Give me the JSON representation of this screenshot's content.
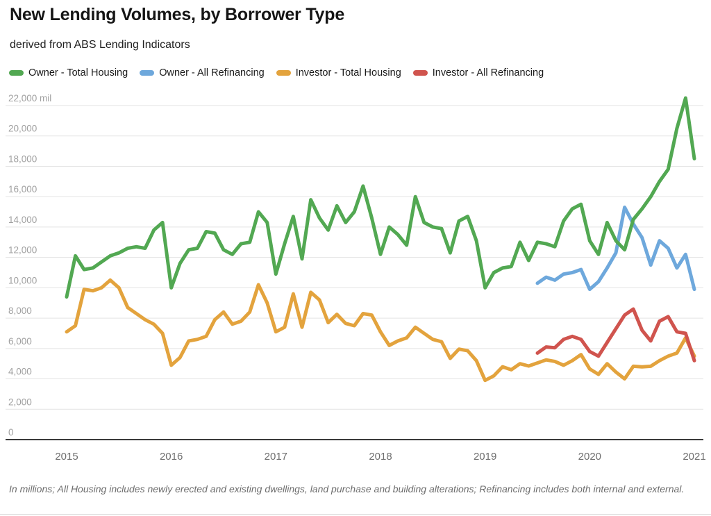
{
  "header": {
    "title": "New Lending Volumes, by Borrower Type",
    "subtitle": "derived from ABS Lending Indicators"
  },
  "footer": {
    "note": "In millions; All Housing includes newly erected and existing dwellings, land purchase and building alterations; Refinancing includes both internal and external."
  },
  "chart_data": {
    "type": "line",
    "title": "New Lending Volumes, by Borrower Type",
    "grid": "horizontal-only",
    "legend_position": "top",
    "x_axis": {
      "unit": "month",
      "start": "2015-01",
      "end": "2021-01",
      "year_labels": [
        {
          "label": "2015",
          "month_index": 0
        },
        {
          "label": "2016",
          "month_index": 12
        },
        {
          "label": "2017",
          "month_index": 24
        },
        {
          "label": "2018",
          "month_index": 36
        },
        {
          "label": "2019",
          "month_index": 48
        },
        {
          "label": "2020",
          "month_index": 60
        },
        {
          "label": "2021",
          "month_index": 72
        }
      ]
    },
    "y_axis": {
      "range": [
        0,
        22000
      ],
      "ticks": [
        0,
        2000,
        4000,
        6000,
        8000,
        10000,
        12000,
        14000,
        16000,
        18000,
        20000,
        22000
      ],
      "top_tick_suffix": " mil"
    },
    "draw_order": [
      1,
      0,
      2,
      3
    ],
    "series": [
      {
        "name": "Owner - Total Housing",
        "color": "#52A852",
        "start_month_index": 0,
        "values": [
          9400,
          12100,
          11200,
          11300,
          11700,
          12100,
          12300,
          12600,
          12700,
          12600,
          13800,
          14300,
          10000,
          11600,
          12500,
          12600,
          13700,
          13600,
          12500,
          12200,
          12900,
          13000,
          15000,
          14300,
          10900,
          12900,
          14700,
          11900,
          15800,
          14600,
          13800,
          15400,
          14300,
          15000,
          16700,
          14600,
          12200,
          14000,
          13500,
          12800,
          16000,
          14300,
          14000,
          13900,
          12300,
          14400,
          14700,
          13100,
          10000,
          11000,
          11300,
          11400,
          13000,
          11800,
          13000,
          12900,
          12700,
          14400,
          15200,
          15500,
          13100,
          12200,
          14300,
          13100,
          12500,
          14500,
          15200,
          16000,
          17000,
          17800,
          20500,
          22500,
          18500
        ]
      },
      {
        "name": "Owner - All Refinancing",
        "color": "#6EA8DC",
        "start_month_index": 54,
        "values": [
          10300,
          10700,
          10500,
          10900,
          11000,
          11200,
          9900,
          10400,
          11300,
          12300,
          15300,
          14200,
          13300,
          11500,
          13100,
          12600,
          11300,
          12200,
          9900
        ]
      },
      {
        "name": "Investor - Total Housing",
        "color": "#E3A33D",
        "start_month_index": 0,
        "values": [
          7100,
          7500,
          9900,
          9800,
          10000,
          10500,
          10000,
          8700,
          8300,
          7900,
          7600,
          7000,
          4900,
          5400,
          6500,
          6600,
          6800,
          7900,
          8400,
          7600,
          7800,
          8400,
          10200,
          9000,
          7100,
          7400,
          9600,
          7400,
          9700,
          9200,
          7700,
          8250,
          7650,
          7500,
          8300,
          8200,
          7100,
          6200,
          6500,
          6700,
          7400,
          7000,
          6600,
          6450,
          5350,
          5960,
          5850,
          5200,
          3900,
          4200,
          4800,
          4600,
          5000,
          4850,
          5050,
          5250,
          5150,
          4900,
          5200,
          5600,
          4650,
          4300,
          5000,
          4450,
          4000,
          4830,
          4790,
          4830,
          5200,
          5500,
          5700,
          6700,
          5500
        ]
      },
      {
        "name": "Investor - All Refinancing",
        "color": "#D0544E",
        "start_month_index": 54,
        "values": [
          5700,
          6100,
          6050,
          6600,
          6800,
          6600,
          5800,
          5500,
          6400,
          7300,
          8200,
          8600,
          7200,
          6500,
          7800,
          8100,
          7100,
          7000,
          5200
        ]
      }
    ]
  }
}
